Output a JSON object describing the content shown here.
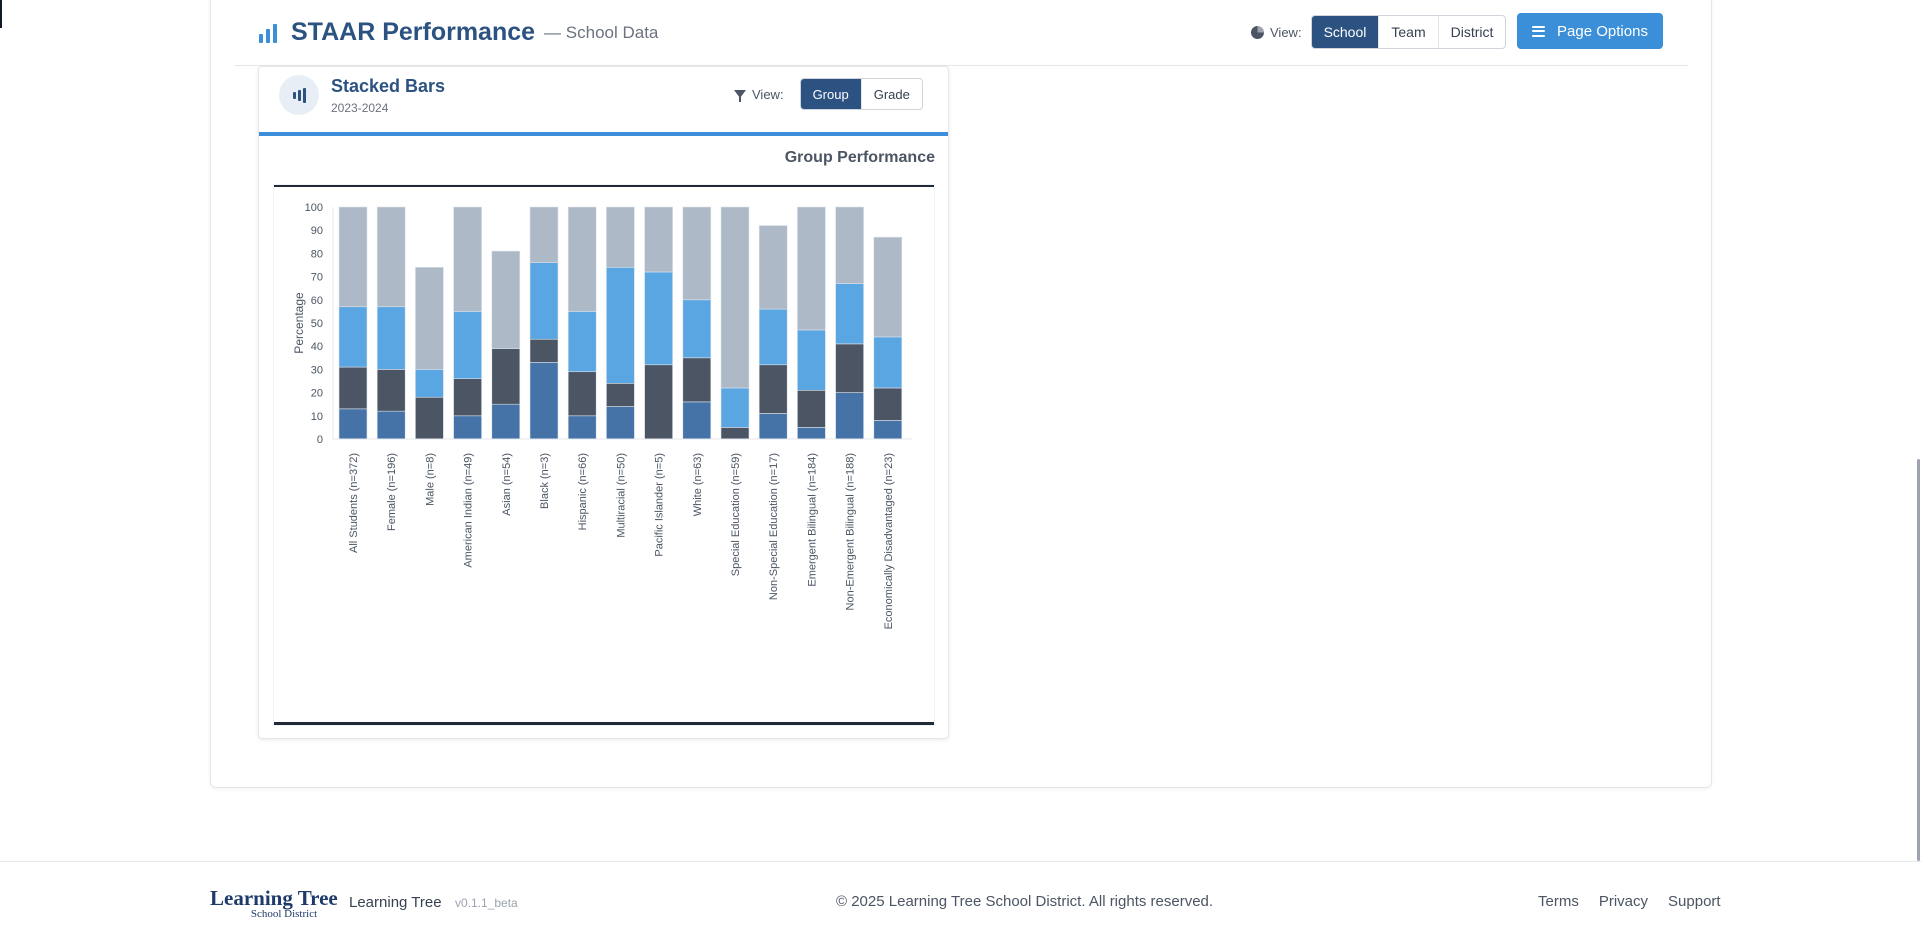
{
  "header": {
    "title": "STAAR Performance",
    "subtitle": "— School Data",
    "view_label": "View:",
    "view_options": [
      "School",
      "Team",
      "District"
    ],
    "view_selected": "School",
    "page_options_label": "Page Options"
  },
  "chart_card": {
    "title": "Stacked Bars",
    "subtitle": "2023-2024",
    "view_label": "View:",
    "view_options": [
      "Group",
      "Grade"
    ],
    "view_selected": "Group",
    "heading": "Group Performance"
  },
  "chart_data": {
    "type": "bar",
    "stacked": true,
    "title": "Group Performance",
    "xlabel": "",
    "ylabel": "Percentage",
    "ylim": [
      0,
      100
    ],
    "yticks": [
      0,
      10,
      20,
      30,
      40,
      50,
      60,
      70,
      80,
      90,
      100
    ],
    "grid": false,
    "legend": "none",
    "categories": [
      "All Students (n=372)",
      "Female (n=196)",
      "Male (n=8)",
      "American Indian (n=49)",
      "Asian (n=54)",
      "Black (n=3)",
      "Hispanic (n=66)",
      "Multiracial (n=50)",
      "Pacific Islander (n=5)",
      "White (n=63)",
      "Special Education (n=59)",
      "Non-Special Education (n=17)",
      "Emergent Bilingual (n=184)",
      "Non-Emergent Bilingual (n=188)",
      "Economically Disadvantaged (n=23)"
    ],
    "series": [
      {
        "color": "#4573a8",
        "values": [
          13,
          12,
          0,
          10,
          15,
          33,
          10,
          14,
          0,
          16,
          0,
          11,
          5,
          20,
          8
        ]
      },
      {
        "color": "#4b5563",
        "values": [
          18,
          18,
          18,
          16,
          24,
          10,
          19,
          10,
          32,
          19,
          5,
          21,
          16,
          21,
          14
        ]
      },
      {
        "color": "#5aa6e3",
        "values": [
          26,
          27,
          12,
          29,
          0,
          33,
          26,
          50,
          40,
          25,
          17,
          24,
          26,
          26,
          22
        ]
      },
      {
        "color": "#aeb9c7",
        "values": [
          43,
          43,
          44,
          45,
          42,
          24,
          45,
          26,
          28,
          40,
          78,
          36,
          53,
          33,
          43
        ]
      }
    ]
  },
  "footer": {
    "logo_main": "Learning Tree",
    "logo_sub": "School District",
    "brand": "Learning Tree",
    "version": "v0.1.1_beta",
    "copyright": "© 2025 Learning Tree School District. All rights reserved.",
    "links": [
      "Terms",
      "Privacy",
      "Support"
    ]
  }
}
